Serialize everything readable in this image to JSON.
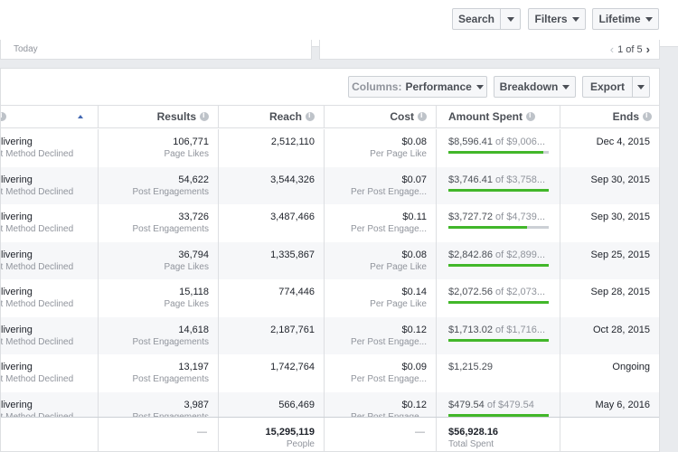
{
  "topbar": {
    "search_label": "Search",
    "filters_label": "Filters",
    "lifetime_label": "Lifetime"
  },
  "date_panel": {
    "today_label": "Today"
  },
  "pager": {
    "text": "1 of 5"
  },
  "toolbar": {
    "columns_prefix": "Columns:",
    "columns_value": "Performance",
    "breakdown_label": "Breakdown",
    "export_label": "Export"
  },
  "table": {
    "headers": {
      "results": "Results",
      "reach": "Reach",
      "cost": "Cost",
      "amount_spent": "Amount Spent",
      "ends": "Ends"
    },
    "rows": [
      {
        "status": "livering",
        "detail": "nt Method Declined",
        "results": "106,771",
        "results_type": "Page Likes",
        "reach": "2,512,110",
        "cost": "$0.08",
        "cost_type": "Per Page Like",
        "spent": "$8,596.41",
        "budget": "of $9,006...",
        "progress": 0.95,
        "ends": "Dec 4, 2015"
      },
      {
        "status": "livering",
        "detail": "nt Method Declined",
        "results": "54,622",
        "results_type": "Post Engagements",
        "reach": "3,544,326",
        "cost": "$0.07",
        "cost_type": "Per Post Engage...",
        "spent": "$3,746.41",
        "budget": "of $3,758...",
        "progress": 1.0,
        "ends": "Sep 30, 2015"
      },
      {
        "status": "livering",
        "detail": "nt Method Declined",
        "results": "33,726",
        "results_type": "Post Engagements",
        "reach": "3,487,466",
        "cost": "$0.11",
        "cost_type": "Per Post Engage...",
        "spent": "$3,727.72",
        "budget": "of $4,739...",
        "progress": 0.78,
        "ends": "Sep 30, 2015"
      },
      {
        "status": "livering",
        "detail": "nt Method Declined",
        "results": "36,794",
        "results_type": "Page Likes",
        "reach": "1,335,867",
        "cost": "$0.08",
        "cost_type": "Per Page Like",
        "spent": "$2,842.86",
        "budget": "of $2,899...",
        "progress": 1.0,
        "ends": "Sep 25, 2015"
      },
      {
        "status": "livering",
        "detail": "nt Method Declined",
        "results": "15,118",
        "results_type": "Page Likes",
        "reach": "774,446",
        "cost": "$0.14",
        "cost_type": "Per Page Like",
        "spent": "$2,072.56",
        "budget": "of $2,073...",
        "progress": 1.0,
        "ends": "Sep 28, 2015"
      },
      {
        "status": "livering",
        "detail": "nt Method Declined",
        "results": "14,618",
        "results_type": "Post Engagements",
        "reach": "2,187,761",
        "cost": "$0.12",
        "cost_type": "Per Post Engage...",
        "spent": "$1,713.02",
        "budget": "of $1,716...",
        "progress": 1.0,
        "ends": "Oct 28, 2015"
      },
      {
        "status": "livering",
        "detail": "nt Method Declined",
        "results": "13,197",
        "results_type": "Post Engagements",
        "reach": "1,742,764",
        "cost": "$0.09",
        "cost_type": "Per Post Engage...",
        "spent": "$1,215.29",
        "budget": "",
        "progress": null,
        "ends": "Ongoing"
      },
      {
        "status": "livering",
        "detail": "nt Method Declined",
        "results": "3,987",
        "results_type": "Post Engagements",
        "reach": "566,469",
        "cost": "$0.12",
        "cost_type": "Per Post Engage...",
        "spent": "$479.54",
        "budget": "of $479.54",
        "progress": 1.0,
        "ends": "May 6, 2016"
      }
    ],
    "totals": {
      "results": "—",
      "reach": "15,295,119",
      "reach_sub": "People",
      "cost": "—",
      "spent": "$56,928.16",
      "spent_sub": "Total Spent"
    }
  },
  "colors": {
    "progress_fill": "#42b72a",
    "progress_track": "#ccd0d5",
    "sort_arrow": "#4267b2"
  }
}
